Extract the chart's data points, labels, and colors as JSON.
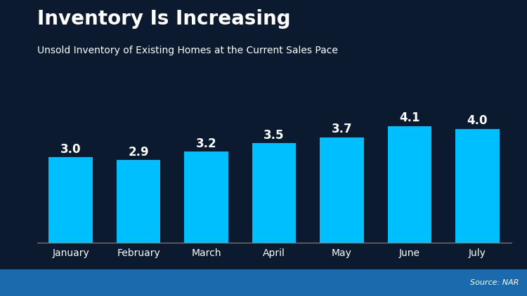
{
  "title": "Inventory Is Increasing",
  "subtitle": "Unsold Inventory of Existing Homes at the Current Sales Pace",
  "source": "Source: NAR",
  "months": [
    "January",
    "February",
    "March",
    "April",
    "May",
    "June",
    "July"
  ],
  "values": [
    3.0,
    2.9,
    3.2,
    3.5,
    3.7,
    4.1,
    4.0
  ],
  "bar_color": "#00BFFF",
  "background_color": "#0b1a2e",
  "footer_color_top": "#1565a0",
  "footer_color_bottom": "#0d4f8a",
  "text_color": "#ffffff",
  "source_color": "#ffffff",
  "title_fontsize": 20,
  "subtitle_fontsize": 10,
  "label_fontsize": 12,
  "tick_fontsize": 10,
  "source_fontsize": 8,
  "ylim": [
    0,
    5.2
  ],
  "bar_width": 0.65
}
